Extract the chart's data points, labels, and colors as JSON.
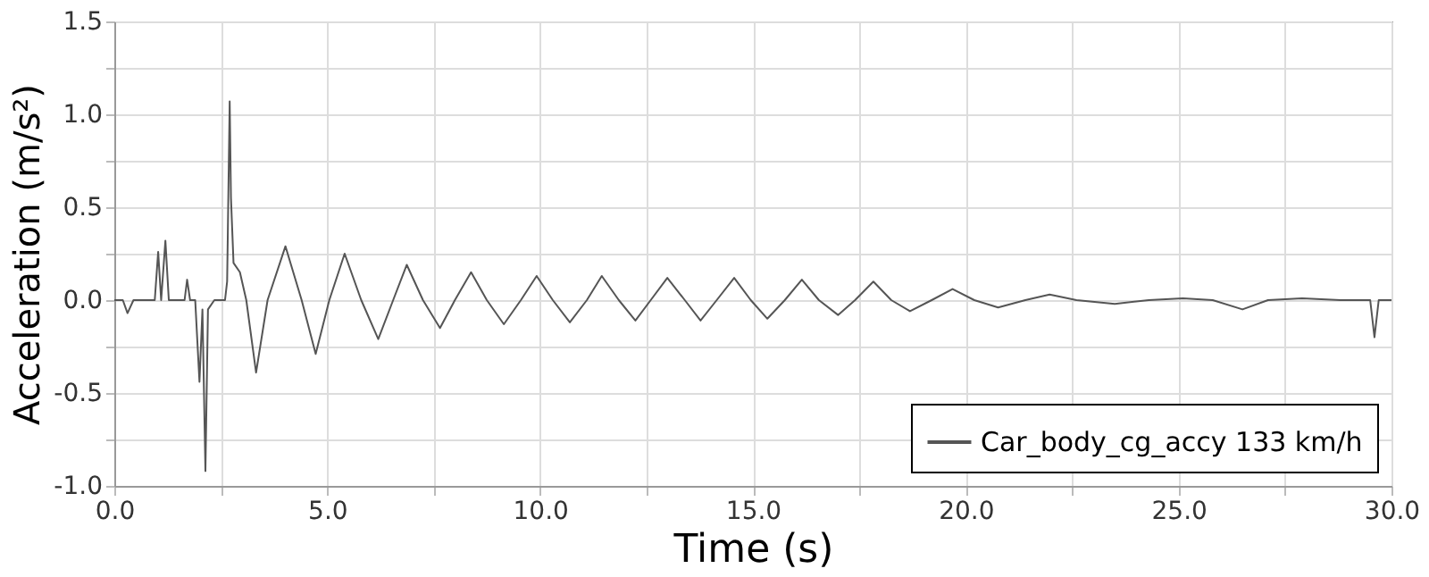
{
  "chart_data": {
    "type": "line",
    "xlabel": "Time (s)",
    "ylabel": "Acceleration (m/s²)",
    "xlim": [
      0,
      30
    ],
    "ylim": [
      -1.0,
      1.5
    ],
    "xticks": [
      {
        "value": 0,
        "label": "0.0"
      },
      {
        "value": 2.5,
        "label": null
      },
      {
        "value": 5,
        "label": "5.0"
      },
      {
        "value": 7.5,
        "label": null
      },
      {
        "value": 10,
        "label": "10.0"
      },
      {
        "value": 12.5,
        "label": null
      },
      {
        "value": 15,
        "label": "15.0"
      },
      {
        "value": 17.5,
        "label": null
      },
      {
        "value": 20,
        "label": "20.0"
      },
      {
        "value": 22.5,
        "label": null
      },
      {
        "value": 25,
        "label": "25.0"
      },
      {
        "value": 27.5,
        "label": null
      },
      {
        "value": 30,
        "label": "30.0"
      }
    ],
    "yticks": [
      {
        "value": -1,
        "label": "-1.0"
      },
      {
        "value": -0.75,
        "label": null
      },
      {
        "value": -0.5,
        "label": "-0.5"
      },
      {
        "value": -0.25,
        "label": null
      },
      {
        "value": 0,
        "label": "0.0"
      },
      {
        "value": 0.25,
        "label": null
      },
      {
        "value": 0.5,
        "label": "0.5"
      },
      {
        "value": 0.75,
        "label": null
      },
      {
        "value": 1,
        "label": "1.0"
      },
      {
        "value": 1.25,
        "label": null
      },
      {
        "value": 1.5,
        "label": "1.5"
      }
    ],
    "grid": true,
    "legend": "bottom right",
    "marker": "none",
    "line_style": "solid",
    "series": [
      {
        "name": "Car_body_cg_accy 133 km/h",
        "color": "#555555",
        "x": [
          0,
          0.2,
          0.31,
          0.45,
          0.95,
          1.03,
          1.1,
          1.2,
          1.28,
          1.65,
          1.71,
          1.78,
          1.9,
          2.0,
          2.07,
          2.14,
          2.2,
          2.35,
          2.6,
          2.65,
          2.71,
          2.74,
          2.8,
          2.95,
          3.1,
          3.33,
          3.6,
          4.02,
          4.4,
          4.73,
          5.05,
          5.41,
          5.8,
          6.2,
          6.55,
          6.87,
          7.25,
          7.65,
          8.0,
          8.38,
          8.75,
          9.15,
          9.55,
          9.92,
          10.3,
          10.7,
          11.1,
          11.45,
          11.85,
          12.24,
          12.6,
          12.99,
          13.4,
          13.77,
          14.15,
          14.56,
          14.95,
          15.34,
          15.75,
          16.15,
          16.55,
          17.0,
          17.4,
          17.83,
          18.25,
          18.69,
          19.2,
          19.69,
          20.2,
          20.76,
          21.4,
          21.97,
          22.6,
          23.5,
          24.3,
          25.1,
          25.8,
          26.5,
          27.1,
          27.9,
          28.8,
          29.5,
          29.6,
          29.7,
          30
        ],
        "values": [
          0,
          0,
          -0.07,
          0,
          0,
          0.26,
          0,
          0.32,
          0,
          0,
          0.11,
          0,
          0,
          -0.44,
          -0.05,
          -0.92,
          -0.05,
          0,
          0,
          0.1,
          1.07,
          0.55,
          0.2,
          0.15,
          0,
          -0.39,
          0,
          0.29,
          0,
          -0.29,
          0,
          0.25,
          0,
          -0.21,
          0,
          0.19,
          0,
          -0.15,
          0,
          0.15,
          0,
          -0.13,
          0,
          0.13,
          0,
          -0.12,
          0,
          0.13,
          0,
          -0.11,
          0,
          0.12,
          0,
          -0.11,
          0,
          0.12,
          0,
          -0.1,
          0,
          0.11,
          0,
          -0.08,
          0,
          0.1,
          0,
          -0.06,
          0,
          0.06,
          0,
          -0.04,
          0,
          0.03,
          0,
          -0.02,
          0,
          0.01,
          0,
          -0.05,
          0,
          0.01,
          0,
          0,
          -0.2,
          0,
          0
        ]
      }
    ]
  }
}
